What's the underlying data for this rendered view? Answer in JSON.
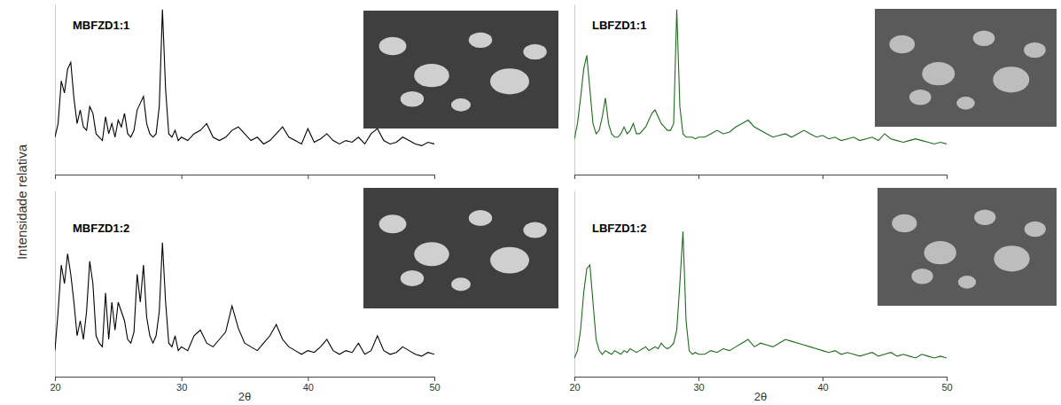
{
  "ylabel": "Intensidade relativa",
  "chart_data": [
    {
      "type": "line",
      "title": "MBFZD1:1",
      "color": "#000000",
      "xlim": [
        20,
        50
      ],
      "xticks": [
        20,
        30,
        40,
        50
      ],
      "ylim": [
        0,
        100
      ],
      "tick_labels": false,
      "x": [
        20,
        20.25,
        20.5,
        20.75,
        21,
        21.25,
        21.5,
        21.75,
        22,
        22.25,
        22.5,
        22.75,
        23,
        23.25,
        23.5,
        23.75,
        24,
        24.25,
        24.5,
        24.75,
        25,
        25.25,
        25.5,
        25.75,
        26,
        26.25,
        26.5,
        26.75,
        27,
        27.25,
        27.5,
        27.75,
        28,
        28.25,
        28.5,
        28.75,
        29,
        29.25,
        29.5,
        29.75,
        30,
        30.5,
        31,
        31.5,
        32,
        32.5,
        33,
        33.5,
        34,
        34.5,
        35,
        35.5,
        36,
        36.5,
        37,
        37.5,
        38,
        38.5,
        39,
        39.5,
        40,
        40.5,
        41,
        41.5,
        42,
        42.5,
        43,
        43.5,
        44,
        44.5,
        45,
        45.5,
        46,
        46.5,
        47,
        47.5,
        48,
        48.5,
        49,
        49.5,
        50
      ],
      "values": [
        22,
        30,
        55,
        48,
        62,
        66,
        45,
        30,
        38,
        28,
        26,
        40,
        36,
        24,
        22,
        20,
        34,
        24,
        30,
        22,
        32,
        28,
        36,
        24,
        22,
        26,
        38,
        42,
        46,
        30,
        24,
        22,
        24,
        40,
        97,
        50,
        24,
        22,
        26,
        20,
        22,
        20,
        24,
        26,
        30,
        22,
        20,
        22,
        26,
        28,
        24,
        20,
        22,
        18,
        20,
        24,
        28,
        22,
        20,
        18,
        27,
        19,
        21,
        24,
        20,
        18,
        20,
        19,
        22,
        18,
        24,
        27,
        20,
        18,
        19,
        22,
        20,
        18,
        17,
        19,
        18
      ]
    },
    {
      "type": "line",
      "title": "MBFZD1:2",
      "color": "#000000",
      "xlim": [
        20,
        50
      ],
      "xticks": [
        20,
        30,
        40,
        50
      ],
      "ylim": [
        0,
        100
      ],
      "tick_labels": "x",
      "xlabel": "2θ",
      "x": [
        20,
        20.25,
        20.5,
        20.75,
        21,
        21.25,
        21.5,
        21.75,
        22,
        22.25,
        22.5,
        22.75,
        23,
        23.25,
        23.5,
        23.75,
        24,
        24.25,
        24.5,
        24.75,
        25,
        25.25,
        25.5,
        25.75,
        26,
        26.25,
        26.5,
        26.75,
        27,
        27.25,
        27.5,
        27.75,
        28,
        28.25,
        28.5,
        28.75,
        29,
        29.25,
        29.5,
        29.75,
        30,
        30.5,
        31,
        31.5,
        32,
        32.5,
        33,
        33.5,
        34,
        34.5,
        35,
        35.5,
        36,
        36.5,
        37,
        37.5,
        38,
        38.5,
        39,
        39.5,
        40,
        40.5,
        41,
        41.5,
        42,
        42.5,
        43,
        43.5,
        44,
        44.5,
        45,
        45.5,
        46,
        46.5,
        47,
        47.5,
        48,
        48.5,
        49,
        49.5,
        50
      ],
      "values": [
        14,
        35,
        60,
        50,
        66,
        55,
        40,
        22,
        30,
        20,
        35,
        62,
        50,
        22,
        18,
        16,
        45,
        20,
        40,
        25,
        40,
        35,
        30,
        20,
        18,
        24,
        55,
        40,
        60,
        32,
        22,
        18,
        22,
        35,
        72,
        40,
        18,
        16,
        22,
        14,
        16,
        14,
        22,
        25,
        18,
        16,
        20,
        24,
        38,
        26,
        18,
        16,
        14,
        18,
        22,
        28,
        20,
        16,
        14,
        12,
        14,
        13,
        16,
        20,
        14,
        12,
        14,
        13,
        18,
        12,
        14,
        22,
        14,
        12,
        13,
        16,
        14,
        12,
        11,
        13,
        12
      ]
    },
    {
      "type": "line",
      "title": "LBFZD1:1",
      "color": "#1e6b1e",
      "xlim": [
        20,
        50
      ],
      "xticks": [
        20,
        30,
        40,
        50
      ],
      "ylim": [
        0,
        100
      ],
      "tick_labels": false,
      "x": [
        20,
        20.25,
        20.5,
        20.75,
        21,
        21.25,
        21.5,
        21.75,
        22,
        22.25,
        22.5,
        22.75,
        23,
        23.25,
        23.5,
        23.75,
        24,
        24.25,
        24.5,
        24.75,
        25,
        25.25,
        25.5,
        25.75,
        26,
        26.25,
        26.5,
        26.75,
        27,
        27.25,
        27.5,
        27.75,
        28,
        28.25,
        28.5,
        28.75,
        29,
        29.25,
        29.5,
        29.75,
        30,
        30.5,
        31,
        31.5,
        32,
        32.5,
        33,
        33.5,
        34,
        34.5,
        35,
        35.5,
        36,
        36.5,
        37,
        37.5,
        38,
        38.5,
        39,
        39.5,
        40,
        40.5,
        41,
        41.5,
        42,
        42.5,
        43,
        43.5,
        44,
        44.5,
        45,
        45.5,
        46,
        46.5,
        47,
        47.5,
        48,
        48.5,
        49,
        49.5,
        50
      ],
      "values": [
        21,
        30,
        45,
        62,
        70,
        50,
        30,
        24,
        26,
        34,
        45,
        30,
        24,
        22,
        22,
        24,
        28,
        24,
        26,
        30,
        24,
        24,
        26,
        28,
        32,
        36,
        38,
        34,
        30,
        28,
        26,
        26,
        30,
        97,
        40,
        24,
        22,
        22,
        22,
        21,
        22,
        22,
        24,
        26,
        24,
        25,
        28,
        30,
        32,
        28,
        26,
        24,
        22,
        23,
        24,
        22,
        24,
        26,
        24,
        22,
        23,
        21,
        22,
        20,
        21,
        22,
        20,
        21,
        22,
        20,
        24,
        21,
        20,
        19,
        20,
        21,
        20,
        19,
        18,
        19,
        18
      ]
    },
    {
      "type": "line",
      "title": "LBFZD1:2",
      "color": "#1e6b1e",
      "xlim": [
        20,
        50
      ],
      "xticks": [
        20,
        30,
        40,
        50
      ],
      "ylim": [
        0,
        100
      ],
      "tick_labels": "x",
      "xlabel": "2θ",
      "x": [
        20,
        20.25,
        20.5,
        20.75,
        21,
        21.25,
        21.5,
        21.75,
        22,
        22.25,
        22.5,
        22.75,
        23,
        23.25,
        23.5,
        23.75,
        24,
        24.25,
        24.5,
        24.75,
        25,
        25.25,
        25.5,
        25.75,
        26,
        26.25,
        26.5,
        26.75,
        27,
        27.25,
        27.5,
        27.75,
        28,
        28.25,
        28.5,
        28.75,
        29,
        29.25,
        29.5,
        29.75,
        30,
        30.5,
        31,
        31.5,
        32,
        32.5,
        33,
        33.5,
        34,
        34.5,
        35,
        35.5,
        36,
        36.5,
        37,
        37.5,
        38,
        38.5,
        39,
        39.5,
        40,
        40.5,
        41,
        41.5,
        42,
        42.5,
        43,
        43.5,
        44,
        44.5,
        45,
        45.5,
        46,
        46.5,
        47,
        47.5,
        48,
        48.5,
        49,
        49.5,
        50
      ],
      "values": [
        10,
        14,
        25,
        45,
        58,
        60,
        40,
        20,
        14,
        12,
        14,
        13,
        12,
        14,
        13,
        12,
        14,
        13,
        15,
        14,
        13,
        14,
        15,
        16,
        14,
        15,
        16,
        15,
        18,
        16,
        15,
        16,
        18,
        25,
        50,
        78,
        30,
        14,
        12,
        13,
        12,
        12,
        14,
        13,
        15,
        14,
        16,
        18,
        20,
        16,
        18,
        17,
        16,
        18,
        20,
        19,
        18,
        17,
        16,
        15,
        14,
        13,
        14,
        12,
        13,
        12,
        11,
        12,
        13,
        11,
        12,
        13,
        11,
        12,
        11,
        10,
        12,
        11,
        10,
        11,
        10
      ]
    }
  ]
}
